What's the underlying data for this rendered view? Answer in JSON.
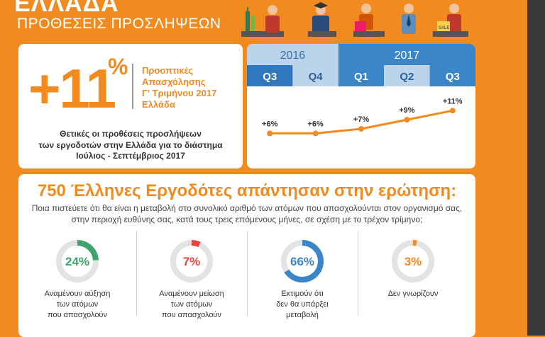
{
  "header": {
    "title": "ΕΛΛΑΔΑ",
    "subtitle": "ΠΡΟΘΕΣΕΙΣ ΠΡΟΣΛΗΨΕΩΝ",
    "sale_tag": "SALE"
  },
  "summary": {
    "value": "+11",
    "percent_sign": "%",
    "outlook_lines": [
      "Προοπτικές",
      "Απασχόλησης",
      "Γ' Τριμήνου 2017",
      "Ελλάδα"
    ],
    "intent_lines": [
      "Θετικές οι προθέσεις προσλήψεων",
      "των εργοδοτών στην Ελλάδα για το διάστημα",
      "Ιούλιος - Σεπτέμβριος 2017"
    ]
  },
  "chart_data": {
    "type": "line",
    "years": [
      {
        "label": "2016",
        "quarters": 2
      },
      {
        "label": "2017",
        "quarters": 3
      }
    ],
    "categories": [
      "Q3",
      "Q4",
      "Q1",
      "Q2",
      "Q3"
    ],
    "values": [
      6,
      6,
      7,
      9,
      11
    ],
    "labels": [
      "+6%",
      "+6%",
      "+7%",
      "+9%",
      "+11%"
    ],
    "ylim": [
      0,
      14
    ]
  },
  "survey": {
    "heading": "750 Έλληνες Εργοδότες απάντησαν στην ερώτηση:",
    "question_lines": [
      "Ποια πιστεύετε ότι θα είναι η μεταβολή στο συνολικό αριθμό των ατόμων που απασχολούνται στον οργανισμό σας,",
      "στην περιοχή ευθύνης σας, κατά τους τρεις επόμενους μήνες, σε σχέση με το τρέχον τρίμηνο;"
    ],
    "stats": [
      {
        "value": 24,
        "label": "24%",
        "color": "#3fa46a",
        "lines": [
          "Αναμένουν αύξηση",
          "των ατόμων",
          "που απασχολούν"
        ]
      },
      {
        "value": 7,
        "label": "7%",
        "color": "#e2463c",
        "lines": [
          "Αναμένουν μείωση",
          "των ατόμων",
          "που απασχολούν"
        ]
      },
      {
        "value": 66,
        "label": "66%",
        "color": "#3a86c8",
        "lines": [
          "Εκτιμούν ότι",
          "δεν θα υπάρξει",
          "μεταβολή"
        ]
      },
      {
        "value": 3,
        "label": "3%",
        "color": "#f18a1f",
        "lines": [
          "Δεν γνωρίζουν"
        ]
      }
    ]
  }
}
